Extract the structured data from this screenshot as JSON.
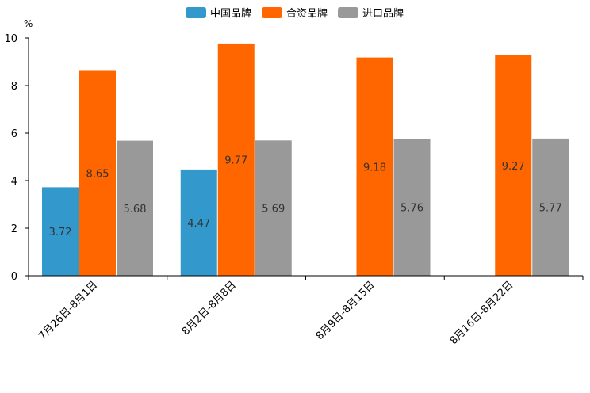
{
  "chart_data": {
    "type": "bar",
    "title": "",
    "xlabel": "",
    "ylabel": "%",
    "ylim": [
      0,
      10
    ],
    "yticks": [
      0,
      2,
      4,
      6,
      8,
      10
    ],
    "grid": false,
    "legend_position": "top-center",
    "categories": [
      "7月26日-8月1日",
      "8月2日-8月8日",
      "8月9日-8月15日",
      "8月16日-8月22日"
    ],
    "series": [
      {
        "name": "中国品牌",
        "color": "#3399cc",
        "values": [
          3.72,
          4.47,
          null,
          null
        ]
      },
      {
        "name": "合资品牌",
        "color": "#ff6600",
        "values": [
          8.65,
          9.77,
          9.18,
          9.27
        ]
      },
      {
        "name": "进口品牌",
        "color": "#999999",
        "values": [
          5.68,
          5.69,
          5.76,
          5.77
        ]
      }
    ]
  }
}
